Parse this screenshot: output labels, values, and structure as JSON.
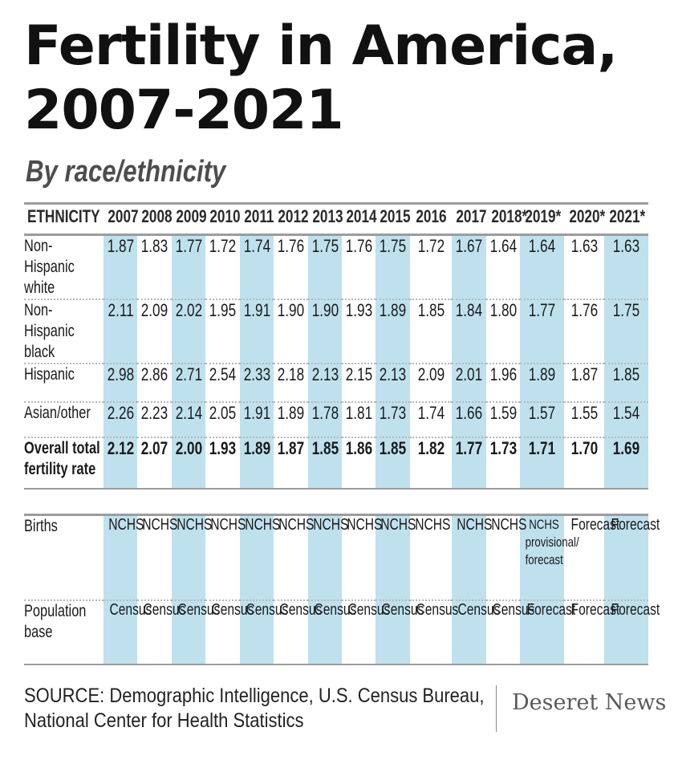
{
  "title": "Fertility in America, 2007-2021",
  "subtitle": "By race/ethnicity",
  "chart_data": {
    "type": "table",
    "column_header": "ETHNICITY",
    "years": [
      "2007",
      "2008",
      "2009",
      "2010",
      "2011",
      "2012",
      "2013",
      "2014",
      "2015",
      "2016",
      "2017",
      "2018*",
      "2019*",
      "2020*",
      "2021*"
    ],
    "shaded_columns": [
      0,
      2,
      4,
      6,
      8,
      10,
      12,
      14
    ],
    "rows": [
      {
        "label": "Non-Hispanic white",
        "values": [
          "1.87",
          "1.83",
          "1.77",
          "1.72",
          "1.74",
          "1.76",
          "1.75",
          "1.76",
          "1.75",
          "1.72",
          "1.67",
          "1.64",
          "1.64",
          "1.63",
          "1.63"
        ]
      },
      {
        "label": "Non-Hispanic black",
        "values": [
          "2.11",
          "2.09",
          "2.02",
          "1.95",
          "1.91",
          "1.90",
          "1.90",
          "1.93",
          "1.89",
          "1.85",
          "1.84",
          "1.80",
          "1.77",
          "1.76",
          "1.75"
        ]
      },
      {
        "label": "Hispanic",
        "values": [
          "2.98",
          "2.86",
          "2.71",
          "2.54",
          "2.33",
          "2.18",
          "2.13",
          "2.15",
          "2.13",
          "2.09",
          "2.01",
          "1.96",
          "1.89",
          "1.87",
          "1.85"
        ]
      },
      {
        "label": "Asian/other",
        "values": [
          "2.26",
          "2.23",
          "2.14",
          "2.05",
          "1.91",
          "1.89",
          "1.78",
          "1.81",
          "1.73",
          "1.74",
          "1.66",
          "1.59",
          "1.57",
          "1.55",
          "1.54"
        ]
      },
      {
        "label": "Overall total fertility rate",
        "bold": true,
        "values": [
          "2.12",
          "2.07",
          "2.00",
          "1.93",
          "1.89",
          "1.87",
          "1.85",
          "1.86",
          "1.85",
          "1.82",
          "1.77",
          "1.73",
          "1.71",
          "1.70",
          "1.69"
        ]
      }
    ],
    "sources": [
      {
        "label": "Births",
        "values": [
          "NCHS",
          "NCHS",
          "NCHS",
          "NCHS",
          "NCHS",
          "NCHS",
          "NCHS",
          "NCHS",
          "NCHS",
          "NCHS",
          "NCHS",
          "NCHS",
          "NCHS provisional/ forecast",
          "Forecast",
          "Forecast"
        ]
      },
      {
        "label": "Population base",
        "values": [
          "Census",
          "Census",
          "Census",
          "Census",
          "Census",
          "Census",
          "Census",
          "Census",
          "Census",
          "Census",
          "Census",
          "Census",
          "Forecast",
          "Forecast",
          "Forecast"
        ]
      }
    ]
  },
  "source_note": "SOURCE: Demographic Intelligence, U.S. Census Bureau, National Center for Health Statistics",
  "source_line1": "SOURCE: Demographic Intelligence, U.S. Census Bureau,",
  "source_line2": "National Center for Health Statistics",
  "logo": "Deseret News",
  "colors": {
    "shade": "#bfe1ee",
    "rule": "#9c9c9c",
    "text": "#1a1a1a"
  }
}
